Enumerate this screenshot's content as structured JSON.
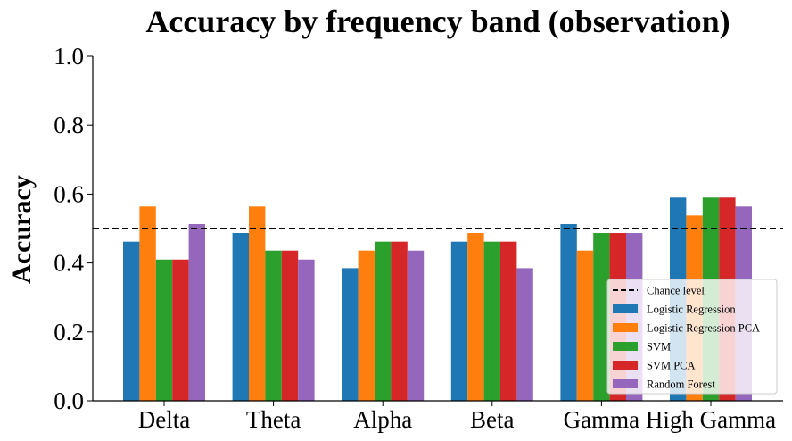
{
  "chart_data": {
    "type": "bar",
    "title": "Accuracy by frequency band (observation)",
    "xlabel": "",
    "ylabel": "Accuracy",
    "ylim": [
      0,
      1.0
    ],
    "yticks": [
      "0.0",
      "0.2",
      "0.4",
      "0.6",
      "0.8",
      "1.0"
    ],
    "categories": [
      "Delta",
      "Theta",
      "Alpha",
      "Beta",
      "Gamma",
      "High Gamma"
    ],
    "series": [
      {
        "name": "Logistic Regression",
        "color": "#1f77b4",
        "values": [
          0.462,
          0.487,
          0.385,
          0.462,
          0.513,
          0.59
        ]
      },
      {
        "name": "Logistic Regression PCA",
        "color": "#ff7f0e",
        "values": [
          0.564,
          0.564,
          0.436,
          0.487,
          0.436,
          0.538
        ]
      },
      {
        "name": "SVM",
        "color": "#2ca02c",
        "values": [
          0.41,
          0.436,
          0.462,
          0.462,
          0.487,
          0.59
        ]
      },
      {
        "name": "SVM PCA",
        "color": "#d62728",
        "values": [
          0.41,
          0.436,
          0.462,
          0.462,
          0.487,
          0.59
        ]
      },
      {
        "name": "Random Forest",
        "color": "#9467bd",
        "values": [
          0.513,
          0.41,
          0.436,
          0.385,
          0.487,
          0.564
        ]
      }
    ],
    "reference_line": {
      "name": "Chance level",
      "value": 0.5,
      "style": "dashed",
      "color": "#000000"
    },
    "legend_position": "lower-right",
    "grid": false
  }
}
